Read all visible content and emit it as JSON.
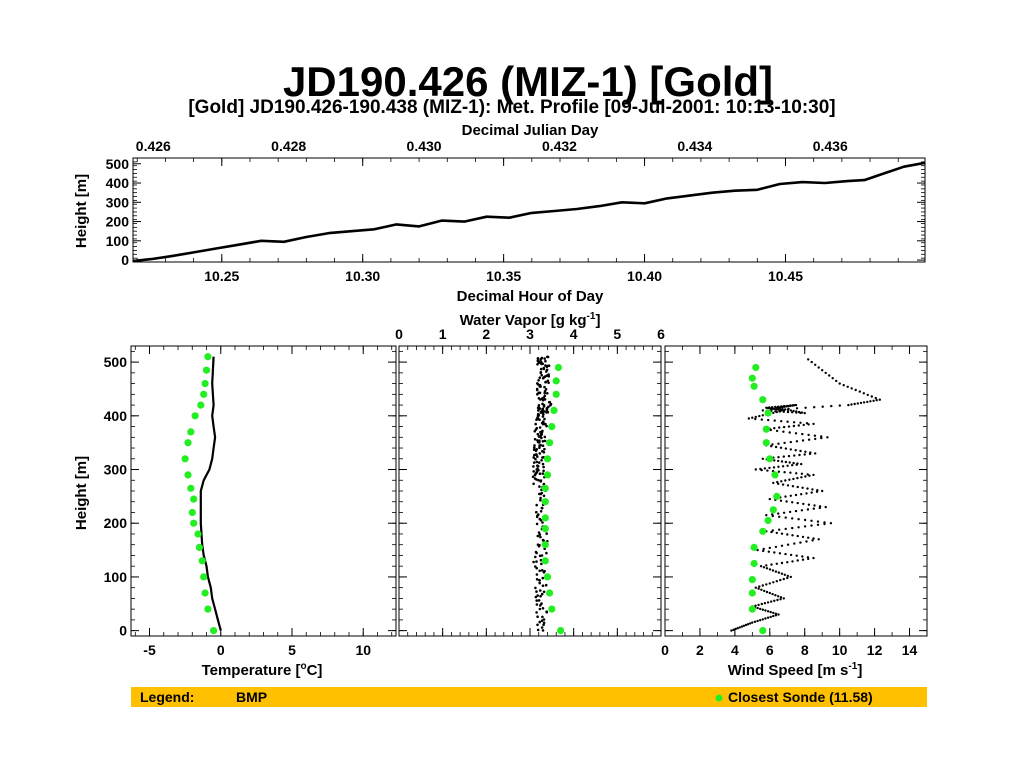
{
  "title": "JD190.426 (MIZ-1) [Gold]",
  "subtitle": "[Gold] JD190.426-190.438 (MIZ-1): Met. Profile [09-Jul-2001: 10:13-10:30]",
  "colors": {
    "bmp": "#000000",
    "sonde": "#22ee22",
    "legend_bar": "#ffc000"
  },
  "legend": {
    "label": "Legend:",
    "bmp": "BMP",
    "sonde": "Closest Sonde (11.58)"
  },
  "chart_data": [
    {
      "id": "height-time",
      "type": "line",
      "top_axis": {
        "label": "Decimal Julian Day",
        "ticks": [
          "0.426",
          "0.428",
          "0.430",
          "0.432",
          "0.434",
          "0.436"
        ],
        "tick_values": [
          0.426,
          0.428,
          0.43,
          0.432,
          0.434,
          0.436
        ],
        "range": [
          0.4257,
          0.4374
        ]
      },
      "xlabel": "Decimal Hour of Day",
      "xticks": [
        "10.25",
        "10.30",
        "10.35",
        "10.40",
        "10.45"
      ],
      "xtick_values": [
        10.25,
        10.3,
        10.35,
        10.4,
        10.45
      ],
      "xlim": [
        10.2185,
        10.4995
      ],
      "ylabel": "Height [m]",
      "yticks": [
        "0",
        "100",
        "200",
        "300",
        "400",
        "500"
      ],
      "ytick_values": [
        0,
        100,
        200,
        300,
        400,
        500
      ],
      "ylim": [
        -10,
        530
      ],
      "series": [
        {
          "name": "BMP",
          "x": [
            10.2185,
            10.225,
            10.232,
            10.24,
            10.248,
            10.256,
            10.264,
            10.272,
            10.28,
            10.288,
            10.296,
            10.304,
            10.312,
            10.32,
            10.328,
            10.336,
            10.344,
            10.352,
            10.36,
            10.368,
            10.376,
            10.384,
            10.392,
            10.4,
            10.408,
            10.416,
            10.424,
            10.432,
            10.44,
            10.448,
            10.456,
            10.464,
            10.472,
            10.478,
            10.485,
            10.492,
            10.4995
          ],
          "y": [
            -5,
            5,
            20,
            40,
            60,
            80,
            100,
            95,
            120,
            140,
            150,
            160,
            185,
            175,
            205,
            200,
            225,
            220,
            245,
            255,
            265,
            280,
            300,
            295,
            320,
            335,
            350,
            360,
            365,
            395,
            405,
            400,
            410,
            415,
            450,
            485,
            505
          ]
        }
      ]
    },
    {
      "id": "temperature-profile",
      "type": "line",
      "xlabel": "Temperature [°C]",
      "xticks": [
        "-5",
        "0",
        "5",
        "10"
      ],
      "xtick_values": [
        -5,
        0,
        5,
        10
      ],
      "xlim": [
        -6.3,
        12.3
      ],
      "ylabel": "Height [m]",
      "yticks": [
        "0",
        "100",
        "200",
        "300",
        "400",
        "500"
      ],
      "ytick_values": [
        0,
        100,
        200,
        300,
        400,
        500
      ],
      "ylim": [
        -10,
        530
      ],
      "series": [
        {
          "name": "BMP",
          "x": [
            0,
            -0.2,
            -0.4,
            -0.6,
            -0.7,
            -0.9,
            -1.0,
            -1.2,
            -1.3,
            -1.4,
            -1.4,
            -1.2,
            -0.8,
            -0.6,
            -0.5,
            -0.4,
            -0.5,
            -0.6,
            -0.5,
            -0.6,
            -0.5
          ],
          "y": [
            0,
            20,
            40,
            60,
            80,
            100,
            120,
            140,
            160,
            200,
            260,
            280,
            300,
            320,
            340,
            360,
            380,
            400,
            420,
            460,
            510
          ]
        },
        {
          "name": "Closest Sonde",
          "x": [
            -0.5,
            -0.9,
            -1.1,
            -1.2,
            -1.3,
            -1.5,
            -1.6,
            -1.9,
            -2.0,
            -1.9,
            -2.1,
            -2.3,
            -2.5,
            -2.3,
            -2.1,
            -1.8,
            -1.4,
            -1.2,
            -1.1,
            -1.0,
            -0.9
          ],
          "y": [
            0,
            40,
            70,
            100,
            130,
            155,
            180,
            200,
            220,
            245,
            265,
            290,
            320,
            350,
            370,
            400,
            420,
            440,
            460,
            485,
            510
          ]
        }
      ]
    },
    {
      "id": "water-vapor-profile",
      "type": "scatter",
      "top_axis": {
        "label": "Water Vapor [g kg-1]",
        "ticks": [
          "0",
          "1",
          "2",
          "3",
          "4",
          "5",
          "6"
        ],
        "tick_values": [
          0,
          1,
          2,
          3,
          4,
          5,
          6
        ],
        "range": [
          0,
          6
        ]
      },
      "ylim": [
        -10,
        530
      ],
      "series": [
        {
          "name": "BMP",
          "x": [
            3.3,
            3.25,
            3.25,
            3.2,
            3.3,
            3.3,
            3.25,
            3.2,
            3.2,
            3.2,
            3.2,
            3.25,
            3.25,
            3.3,
            3.3,
            3.35,
            3.3,
            3.3,
            3.3,
            3.3,
            3.3
          ],
          "y": [
            0,
            40,
            80,
            120,
            160,
            200,
            240,
            280,
            300,
            320,
            340,
            360,
            380,
            400,
            410,
            420,
            440,
            460,
            480,
            500,
            510
          ]
        },
        {
          "name": "Closest Sonde",
          "x": [
            3.7,
            3.5,
            3.45,
            3.4,
            3.35,
            3.35,
            3.35,
            3.35,
            3.35,
            3.35,
            3.4,
            3.4,
            3.45,
            3.5,
            3.55,
            3.6,
            3.6,
            3.65
          ],
          "y": [
            0,
            40,
            70,
            100,
            130,
            160,
            190,
            210,
            240,
            265,
            290,
            320,
            350,
            380,
            410,
            440,
            465,
            490
          ]
        }
      ]
    },
    {
      "id": "wind-speed-profile",
      "type": "line",
      "xlabel": "Wind Speed [m s-1]",
      "xticks": [
        "0",
        "2",
        "4",
        "6",
        "8",
        "10",
        "12",
        "14"
      ],
      "xtick_values": [
        0,
        2,
        4,
        6,
        8,
        10,
        12,
        14
      ],
      "xlim": [
        0,
        15
      ],
      "ylim": [
        -10,
        530
      ],
      "series": [
        {
          "name": "BMP",
          "x": [
            3.8,
            5.0,
            6.5,
            5.0,
            6.8,
            5.2,
            7.2,
            5.5,
            8.5,
            5.3,
            8.8,
            5.8,
            9.5,
            5.8,
            9.2,
            6.0,
            9.0,
            6.2,
            8.5,
            5.2,
            7.8,
            5.6,
            8.6,
            5.8,
            9.3,
            5.7,
            8.5,
            4.8,
            6.8,
            5.8,
            7.5,
            6.4,
            8.0,
            5.6,
            10.5,
            12.3,
            10.0,
            8.0
          ],
          "y": [
            0,
            15,
            30,
            45,
            60,
            80,
            100,
            120,
            135,
            150,
            170,
            185,
            200,
            215,
            230,
            245,
            260,
            275,
            290,
            300,
            310,
            320,
            330,
            345,
            360,
            375,
            385,
            395,
            410,
            415,
            420,
            415,
            405,
            410,
            420,
            430,
            460,
            510
          ]
        },
        {
          "name": "Closest Sonde",
          "x": [
            5.6,
            5.0,
            5.0,
            5.0,
            5.1,
            5.1,
            5.6,
            5.9,
            6.2,
            6.4,
            6.3,
            6.0,
            5.8,
            5.8,
            5.9,
            5.6,
            5.1,
            5.0,
            5.2
          ],
          "y": [
            0,
            40,
            70,
            95,
            125,
            155,
            185,
            205,
            225,
            250,
            290,
            320,
            350,
            375,
            405,
            430,
            455,
            470,
            490
          ]
        }
      ]
    }
  ]
}
